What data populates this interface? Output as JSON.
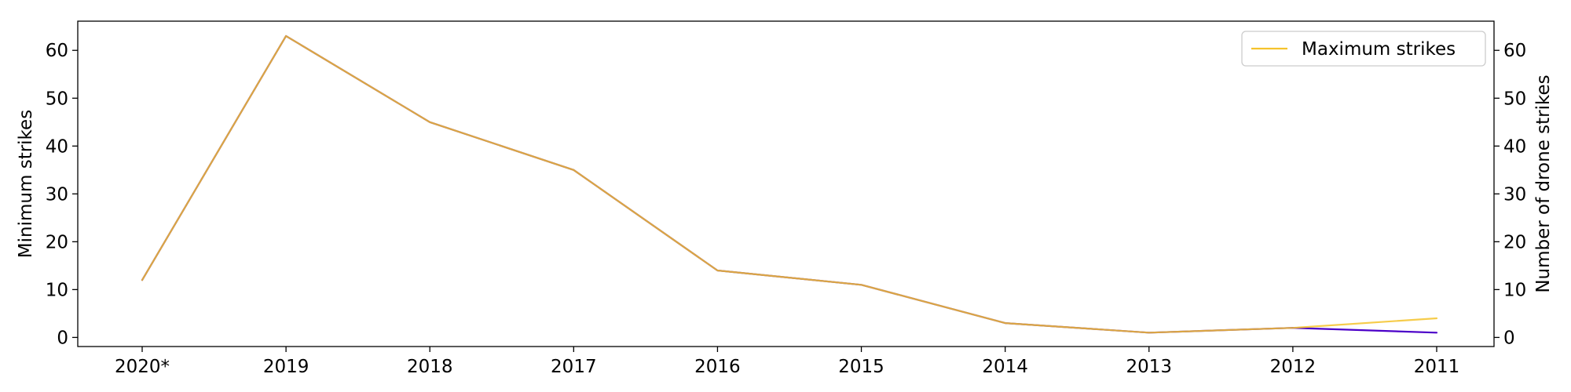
{
  "chart_data": {
    "type": "line",
    "categories": [
      "2020*",
      "2019",
      "2018",
      "2017",
      "2016",
      "2015",
      "2014",
      "2013",
      "2012",
      "2011"
    ],
    "series": [
      {
        "axis": "left",
        "color": "#4b00c8",
        "values": [
          12,
          63,
          45,
          35,
          14,
          11,
          3,
          1,
          2,
          1
        ]
      },
      {
        "name": "Maximum strikes",
        "axis": "right",
        "color": "#f5c32c",
        "values": [
          12,
          63,
          45,
          35,
          14,
          11,
          3,
          1,
          2,
          4
        ]
      }
    ],
    "ylabel_left": "Minimum strikes",
    "ylabel_right": "Number of drone strikes",
    "ylim": [
      -1.9,
      66.1
    ],
    "yticks": [
      0,
      10,
      20,
      30,
      40,
      50,
      60
    ],
    "legend_position": "top-right",
    "grid": false
  }
}
